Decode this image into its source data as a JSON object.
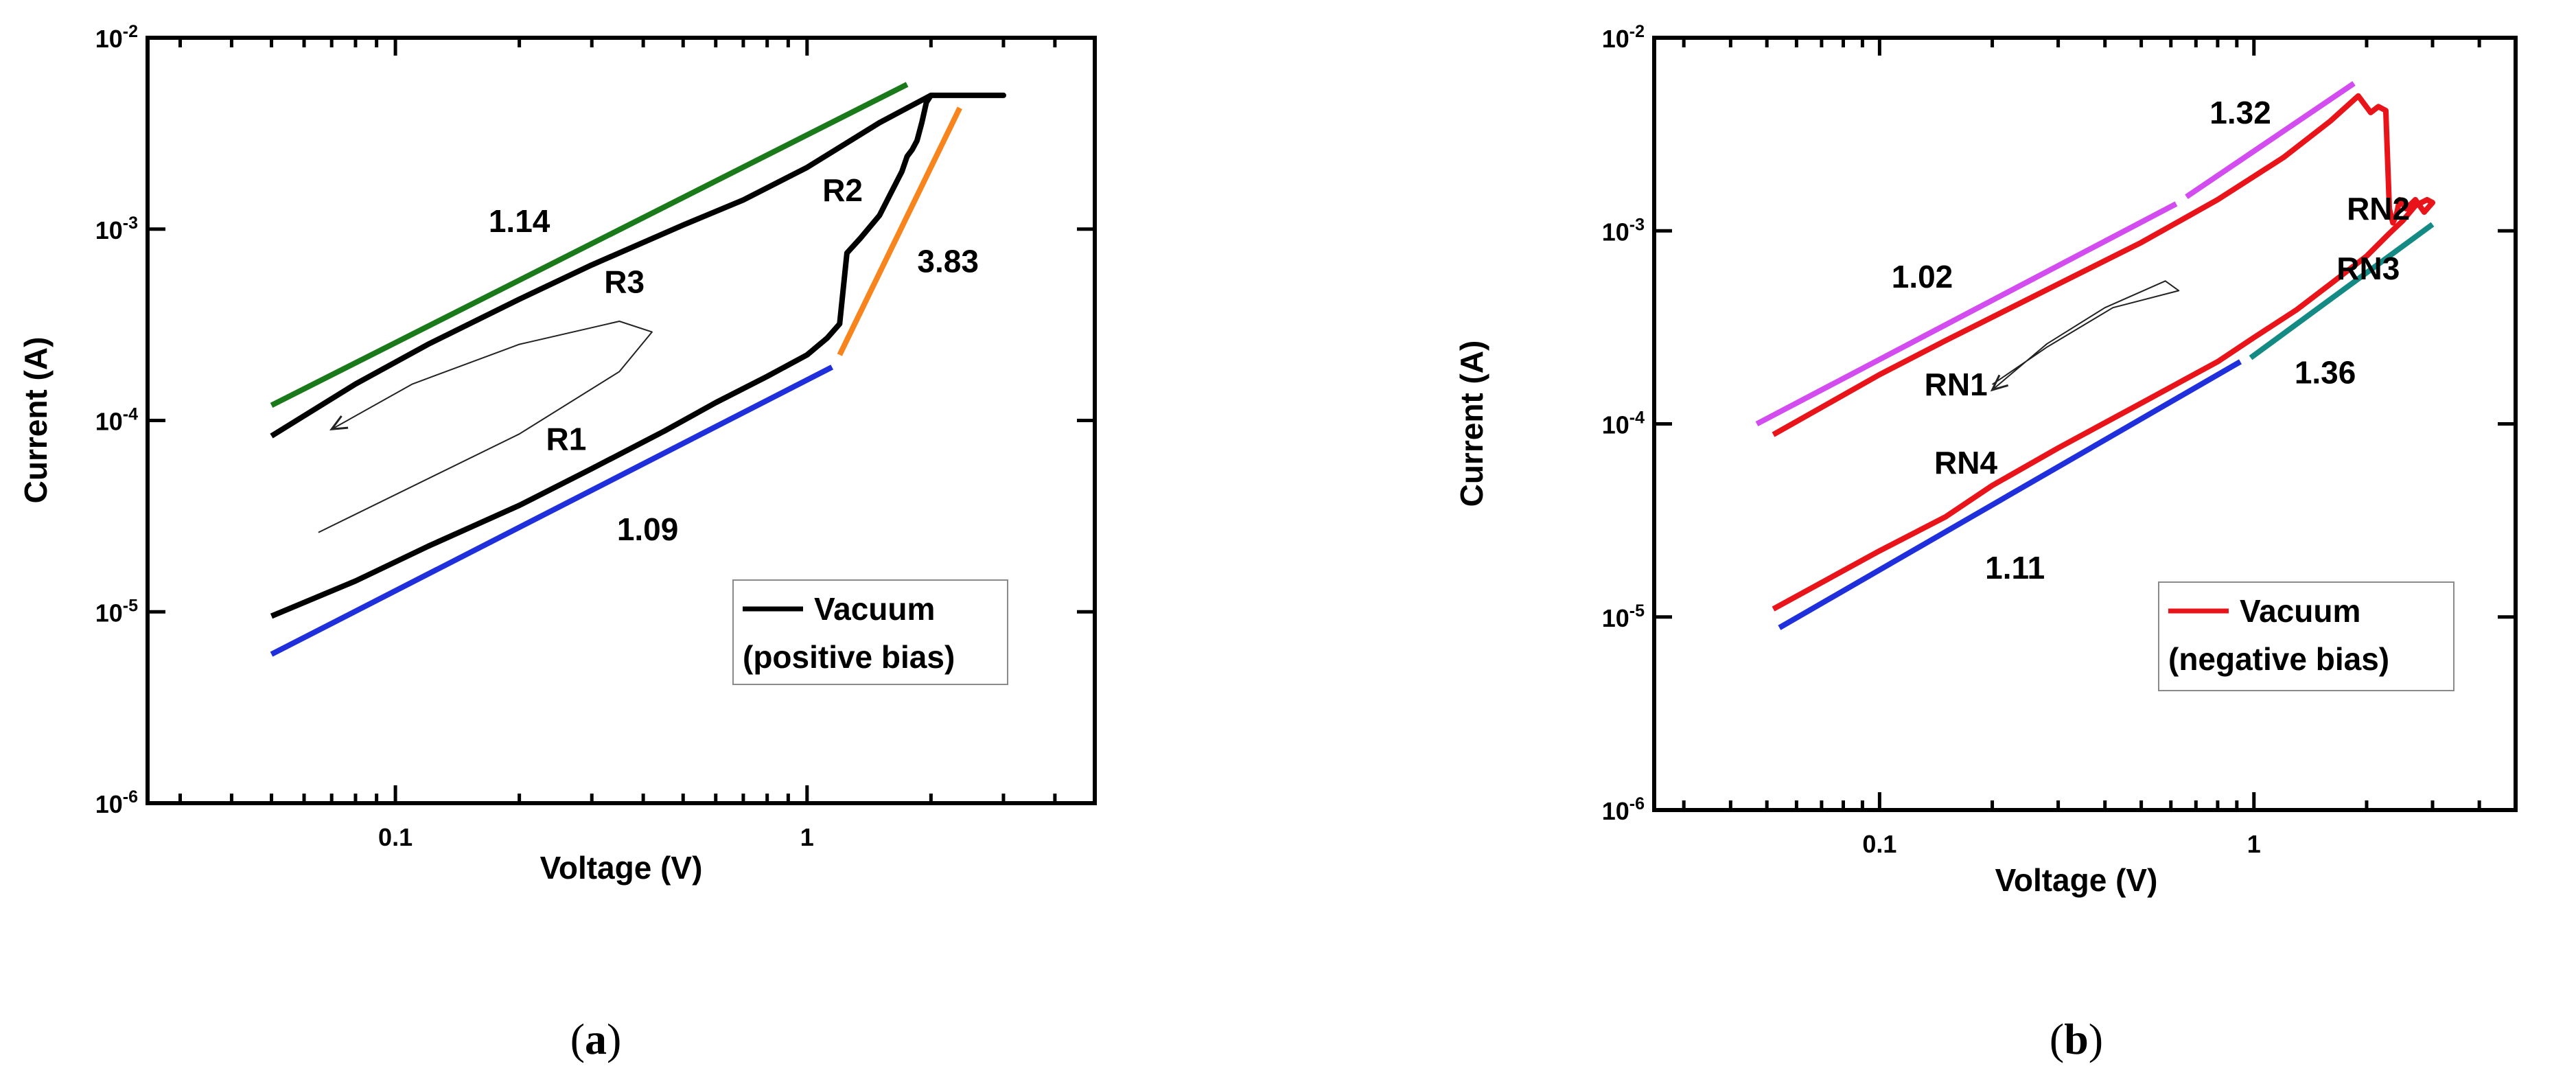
{
  "chart_data": [
    {
      "type": "line",
      "panel_caption_open": "(",
      "panel_caption_letter": "a",
      "panel_caption_close": ")",
      "xlabel": "Voltage (V)",
      "ylabel": "Current (A)",
      "xscale": "log",
      "yscale": "log",
      "xlim": [
        0.025,
        5
      ],
      "ylim": [
        1e-06,
        0.01
      ],
      "x_tick_labels": [
        "0.1",
        "1"
      ],
      "y_tick_bases": [
        "10",
        "10",
        "10",
        "10",
        "10"
      ],
      "y_tick_exponents": [
        "-6",
        "-5",
        "-4",
        "-3",
        "-2"
      ],
      "legend": {
        "position": "bottom-right",
        "line1": "Vacuum",
        "line2": "(positive bias)",
        "color": "#000000"
      },
      "series": [
        {
          "name": "Vacuum (positive bias)",
          "color": "#000000",
          "x": [
            0.05,
            0.08,
            0.12,
            0.2,
            0.3,
            0.45,
            0.6,
            0.8,
            1.0,
            1.12,
            1.2,
            1.25,
            1.35,
            1.5,
            1.6,
            1.7,
            1.75,
            1.8,
            1.85,
            1.9,
            1.95,
            2.0,
            2.5,
            3.0,
            2.5,
            2.0,
            1.5,
            1.0,
            0.7,
            0.5,
            0.3,
            0.2,
            0.12,
            0.08,
            0.05
          ],
          "y": [
            9.5e-06,
            1.45e-05,
            2.2e-05,
            3.6e-05,
            5.6e-05,
            8.8e-05,
            0.000124,
            0.00017,
            0.00022,
            0.00027,
            0.00032,
            0.00075,
            0.0009,
            0.00118,
            0.00155,
            0.002,
            0.0024,
            0.0026,
            0.0029,
            0.0036,
            0.0046,
            0.005,
            0.005,
            0.005,
            0.005,
            0.005,
            0.0036,
            0.0021,
            0.00142,
            0.00105,
            0.00065,
            0.00043,
            0.00025,
            0.000155,
            8.3e-05
          ]
        },
        {
          "name": "fit 1.09",
          "color": "#1f2fdc",
          "x": [
            0.05,
            1.15
          ],
          "y": [
            6e-06,
            0.00019
          ]
        },
        {
          "name": "fit 3.83",
          "color": "#f7841c",
          "x": [
            1.2,
            2.35
          ],
          "y": [
            0.00022,
            0.0043
          ]
        },
        {
          "name": "fit 1.14",
          "color": "#1a7a1a",
          "x": [
            0.05,
            1.75
          ],
          "y": [
            0.00012,
            0.0057
          ]
        },
        {
          "name": "sweep-direction",
          "color": "#222222",
          "x": [
            0.065,
            0.2,
            0.35,
            0.42,
            0.35,
            0.2,
            0.11,
            0.07
          ],
          "y": [
            2.6e-05,
            8.5e-05,
            0.00018,
            0.00029,
            0.00033,
            0.00025,
            0.000155,
            9e-05
          ]
        }
      ],
      "annotations": [
        {
          "text": "1.14",
          "x": 0.2,
          "y": 0.0011
        },
        {
          "text": "R3",
          "x": 0.36,
          "y": 0.00053
        },
        {
          "text": "R2",
          "x": 1.22,
          "y": 0.0016
        },
        {
          "text": "3.83",
          "x": 2.2,
          "y": 0.00068
        },
        {
          "text": "R1",
          "x": 0.26,
          "y": 8e-05
        },
        {
          "text": "1.09",
          "x": 0.41,
          "y": 2.7e-05
        }
      ]
    },
    {
      "type": "line",
      "panel_caption_open": "(",
      "panel_caption_letter": "b",
      "panel_caption_close": ")",
      "xlabel": "Voltage (V)",
      "ylabel": "Current (A)",
      "xscale": "log",
      "yscale": "log",
      "xlim": [
        0.025,
        5
      ],
      "ylim": [
        1e-06,
        0.01
      ],
      "x_tick_labels": [
        "0.1",
        "1"
      ],
      "y_tick_bases": [
        "10",
        "10",
        "10",
        "10",
        "10"
      ],
      "y_tick_exponents": [
        "-6",
        "-5",
        "-4",
        "-3",
        "-2"
      ],
      "legend": {
        "position": "bottom-right",
        "line1": "Vacuum",
        "line2": "(negative bias)",
        "color": "#e8141a"
      },
      "series": [
        {
          "name": "Vacuum (negative bias)",
          "color": "#e8141a",
          "x": [
            0.052,
            0.1,
            0.15,
            0.2,
            0.3,
            0.5,
            0.8,
            1.0,
            1.3,
            1.6,
            2.0,
            2.3,
            2.5,
            2.7,
            2.9,
            3.0,
            2.85,
            2.7,
            2.55,
            2.45,
            2.4,
            2.35,
            2.3,
            2.25,
            2.15,
            2.05,
            1.9,
            1.6,
            1.2,
            0.8,
            0.5,
            0.3,
            0.15,
            0.1,
            0.052
          ],
          "y": [
            1.1e-05,
            2.2e-05,
            3.3e-05,
            4.8e-05,
            7.5e-05,
            0.000128,
            0.00021,
            0.00028,
            0.00039,
            0.00053,
            0.00074,
            0.00097,
            0.00113,
            0.00135,
            0.00145,
            0.0014,
            0.00125,
            0.00145,
            0.0013,
            0.00145,
            0.0012,
            0.0011,
            0.0013,
            0.0042,
            0.0044,
            0.0041,
            0.005,
            0.0037,
            0.0024,
            0.00145,
            0.00087,
            0.00053,
            0.00027,
            0.00018,
            8.8e-05
          ]
        },
        {
          "name": "fit 1.11",
          "color": "#1f2fdc",
          "x": [
            0.054,
            0.92
          ],
          "y": [
            8.8e-06,
            0.00021
          ]
        },
        {
          "name": "fit 1.36",
          "color": "#138a84",
          "x": [
            0.98,
            3.0
          ],
          "y": [
            0.00022,
            0.00108
          ]
        },
        {
          "name": "fit 1.02",
          "color": "#d24cf0",
          "x": [
            0.047,
            0.62
          ],
          "y": [
            0.0001,
            0.00138
          ]
        },
        {
          "name": "fit 1.32",
          "color": "#d24cf0",
          "x": [
            0.66,
            1.85
          ],
          "y": [
            0.0015,
            0.0058
          ]
        },
        {
          "name": "sweep-direction",
          "color": "#222222",
          "x": [
            0.2,
            0.28,
            0.42,
            0.63,
            0.58,
            0.4,
            0.28,
            0.2
          ],
          "y": [
            0.00016,
            0.00025,
            0.0004,
            0.00049,
            0.00055,
            0.0004,
            0.00026,
            0.00015
          ]
        }
      ],
      "annotations": [
        {
          "text": "1.32",
          "x": 0.92,
          "y": 0.0041
        },
        {
          "text": "RN2",
          "x": 2.15,
          "y": 0.0013
        },
        {
          "text": "1.02",
          "x": 0.13,
          "y": 0.00058
        },
        {
          "text": "RN3",
          "x": 2.02,
          "y": 0.00064
        },
        {
          "text": "1.36",
          "x": 1.55,
          "y": 0.000185
        },
        {
          "text": "RN1",
          "x": 0.16,
          "y": 0.00016
        },
        {
          "text": "RN4",
          "x": 0.17,
          "y": 6.3e-05
        },
        {
          "text": "1.11",
          "x": 0.23,
          "y": 1.8e-05
        }
      ]
    }
  ]
}
